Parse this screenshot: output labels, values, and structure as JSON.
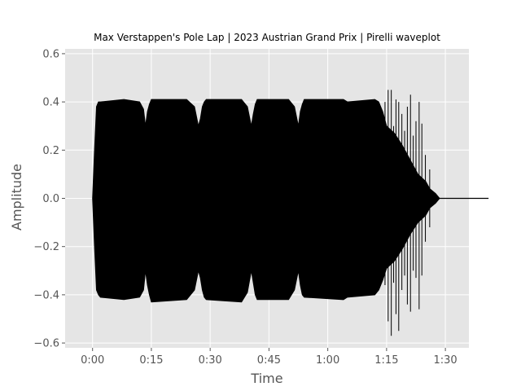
{
  "chart_data": {
    "type": "line",
    "title": "Max Verstappen's Pole Lap | 2023 Austrian Grand Prix | Pirelli waveplot",
    "xlabel": "Time",
    "ylabel": "Amplitude",
    "xlim": [
      -7,
      96
    ],
    "ylim": [
      -0.62,
      0.62
    ],
    "x_ticks": [
      0,
      15,
      30,
      45,
      60,
      75,
      90
    ],
    "x_tick_labels": [
      "0:00",
      "0:15",
      "0:30",
      "0:45",
      "1:00",
      "1:15",
      "1:30"
    ],
    "y_ticks": [
      -0.6,
      -0.4,
      -0.2,
      0.0,
      0.2,
      0.4,
      0.6
    ],
    "y_tick_labels": [
      "−0.6",
      "−0.4",
      "−0.2",
      "0.0",
      "0.2",
      "0.4",
      "0.6"
    ],
    "grid": true,
    "background": "#e5e5e5",
    "line_color": "#000000",
    "envelope": {
      "t": [
        0,
        0.5,
        1,
        1.5,
        2,
        8,
        12,
        13,
        13.5,
        14,
        14.5,
        15,
        24,
        26,
        27,
        27.5,
        28,
        28.5,
        29,
        38,
        39.5,
        40.5,
        41,
        41.5,
        42,
        50,
        51.5,
        52.5,
        53,
        53.5,
        54,
        64,
        65,
        72,
        73,
        74,
        75,
        77,
        79,
        81,
        83,
        85,
        86,
        87.5,
        88.5,
        101
      ],
      "upper": [
        0,
        0.2,
        0.38,
        0.4,
        0.4,
        0.41,
        0.4,
        0.37,
        0.3,
        0.36,
        0.39,
        0.41,
        0.41,
        0.38,
        0.3,
        0.33,
        0.38,
        0.4,
        0.41,
        0.41,
        0.38,
        0.3,
        0.35,
        0.39,
        0.41,
        0.41,
        0.38,
        0.3,
        0.36,
        0.39,
        0.41,
        0.41,
        0.4,
        0.41,
        0.4,
        0.36,
        0.3,
        0.27,
        0.22,
        0.16,
        0.1,
        0.07,
        0.04,
        0.02,
        0,
        0
      ],
      "lower": [
        0,
        -0.2,
        -0.38,
        -0.4,
        -0.41,
        -0.42,
        -0.41,
        -0.38,
        -0.3,
        -0.36,
        -0.4,
        -0.43,
        -0.42,
        -0.38,
        -0.3,
        -0.33,
        -0.38,
        -0.41,
        -0.42,
        -0.43,
        -0.39,
        -0.3,
        -0.35,
        -0.4,
        -0.42,
        -0.42,
        -0.38,
        -0.3,
        -0.36,
        -0.4,
        -0.41,
        -0.42,
        -0.41,
        -0.4,
        -0.38,
        -0.34,
        -0.29,
        -0.26,
        -0.21,
        -0.15,
        -0.1,
        -0.07,
        -0.04,
        -0.02,
        0,
        0
      ]
    },
    "spikes": [
      {
        "t": 74.6,
        "min": -0.36,
        "max": 0.4
      },
      {
        "t": 75.4,
        "min": -0.51,
        "max": 0.45
      },
      {
        "t": 76.2,
        "min": -0.57,
        "max": 0.45
      },
      {
        "t": 76.8,
        "min": -0.35,
        "max": 0.3
      },
      {
        "t": 77.4,
        "min": -0.48,
        "max": 0.41
      },
      {
        "t": 78.1,
        "min": -0.55,
        "max": 0.4
      },
      {
        "t": 78.9,
        "min": -0.38,
        "max": 0.35
      },
      {
        "t": 79.6,
        "min": -0.32,
        "max": 0.28
      },
      {
        "t": 80.3,
        "min": -0.44,
        "max": 0.38
      },
      {
        "t": 81.1,
        "min": -0.47,
        "max": 0.43
      },
      {
        "t": 81.8,
        "min": -0.3,
        "max": 0.26
      },
      {
        "t": 82.5,
        "min": -0.33,
        "max": 0.32
      },
      {
        "t": 83.3,
        "min": -0.46,
        "max": 0.4
      },
      {
        "t": 84.0,
        "min": -0.32,
        "max": 0.31
      },
      {
        "t": 84.9,
        "min": -0.18,
        "max": 0.18
      },
      {
        "t": 86.0,
        "min": -0.12,
        "max": 0.12
      }
    ]
  }
}
